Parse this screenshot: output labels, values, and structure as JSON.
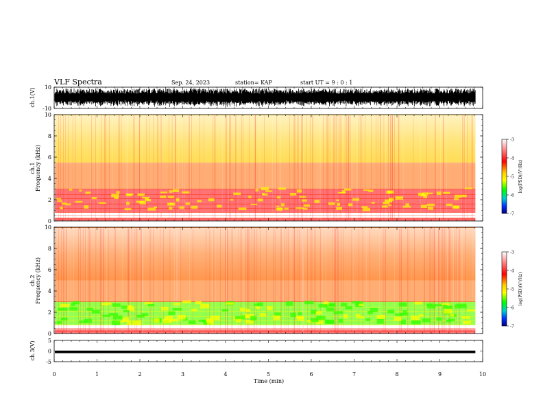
{
  "header": {
    "title": "VLF Spectra",
    "date": "Sep. 24, 2023",
    "station": "station= KAP",
    "start": "start  UT =  9 : 0 : 1"
  },
  "chart_data": [
    {
      "type": "line",
      "panel": "ch1-waveform",
      "ylabel": "ch.1(V)",
      "ylim": [
        -10,
        10
      ],
      "y_ticks": [
        "10",
        "-10"
      ],
      "x_range_min": [
        0,
        9.83
      ],
      "note_values": "dense noise waveform spanning nearly the full range"
    },
    {
      "type": "heatmap",
      "panel": "ch1-spectrogram",
      "ylabel": "ch.1\nFrequency  (kHz)",
      "ylim": [
        0,
        10
      ],
      "y_ticks": [
        "0",
        "2",
        "4",
        "6",
        "8",
        "10"
      ],
      "x_range_min": [
        0,
        9.83
      ],
      "colorbar": {
        "label": "log(PSD)(V²/Hz)",
        "range": [
          -7,
          -3
        ],
        "ticks": [
          "-3",
          "-4",
          "-5",
          "-6",
          "-7"
        ]
      },
      "bands": [
        {
          "f_khz": [
            0,
            0.3
          ],
          "level": -3.7
        },
        {
          "f_khz": [
            0.8,
            3.0
          ],
          "level": -3.8
        },
        {
          "f_khz": [
            3.0,
            5.5
          ],
          "level": -4.0
        },
        {
          "f_khz": [
            5.5,
            10
          ],
          "level": -4.4
        }
      ]
    },
    {
      "type": "heatmap",
      "panel": "ch2-spectrogram",
      "ylabel": "ch.2\nFrequency  (kHz)",
      "ylim": [
        0,
        10
      ],
      "y_ticks": [
        "0",
        "2",
        "4",
        "6",
        "8",
        "10"
      ],
      "x_range_min": [
        0,
        9.83
      ],
      "colorbar": {
        "label": "log(PSD)(V²/Hz)",
        "range": [
          -7,
          -3
        ],
        "ticks": [
          "-3",
          "-4",
          "-5",
          "-6",
          "-7"
        ]
      },
      "bands": [
        {
          "f_khz": [
            0,
            0.4
          ],
          "level": -3.7
        },
        {
          "f_khz": [
            0.8,
            3.0
          ],
          "level": -5.0
        },
        {
          "f_khz": [
            3.0,
            5.0
          ],
          "level": -4.0
        },
        {
          "f_khz": [
            5.0,
            10
          ],
          "level": -4.3
        }
      ]
    },
    {
      "type": "line",
      "panel": "ch3-waveform",
      "ylabel": "ch.3(V)",
      "ylim": [
        -5,
        5
      ],
      "y_ticks": [
        "5",
        "0",
        "-5"
      ],
      "x_range_min": [
        0,
        9.83
      ],
      "band_v": [
        -1.0,
        0.2
      ]
    }
  ],
  "x_axis": {
    "label": "Time  (min)",
    "ticks": [
      "0",
      "1",
      "2",
      "3",
      "4",
      "5",
      "6",
      "7",
      "8",
      "9",
      "10"
    ],
    "range": [
      0,
      10
    ]
  },
  "colors": {
    "bg": "#ffffff",
    "spectro_hot": "#ff0000",
    "spectro_mid": "#ffff00",
    "spectro_low": "#00ff00",
    "ink": "#000000"
  }
}
